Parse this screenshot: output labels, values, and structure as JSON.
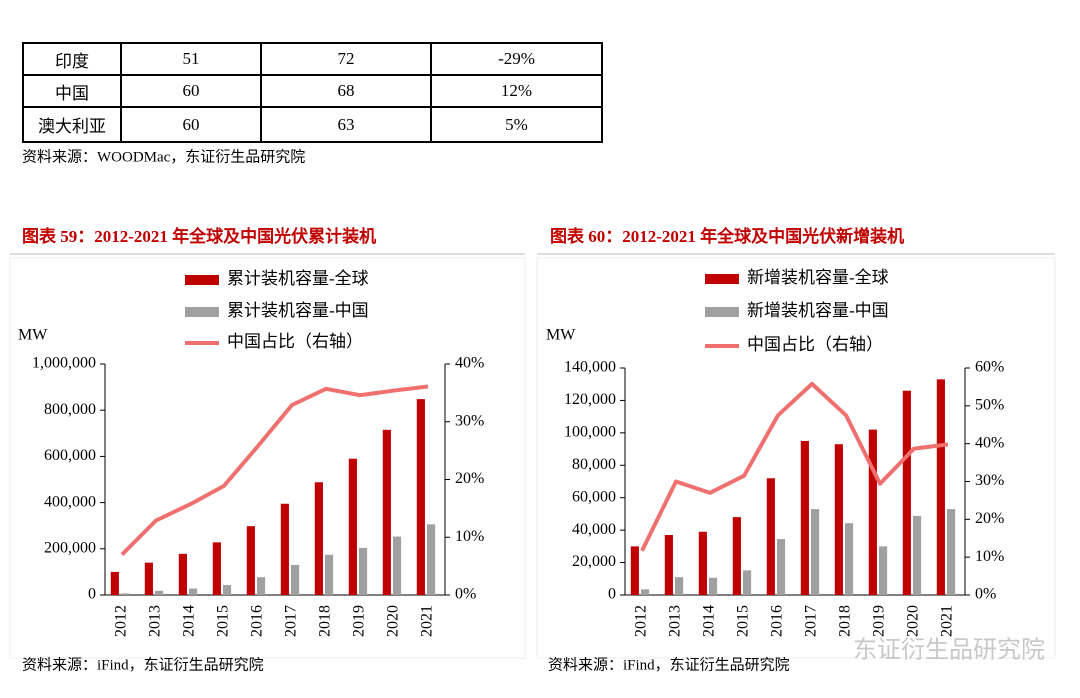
{
  "table": {
    "rows": [
      [
        "印度",
        "51",
        "72",
        "-29%"
      ],
      [
        "中国",
        "60",
        "68",
        "12%"
      ],
      [
        "澳大利亚",
        "60",
        "63",
        "5%"
      ]
    ]
  },
  "table_source": "资料来源：WOODMac，东证衍生品研究院",
  "chart_data": [
    {
      "type": "bar",
      "title": "图表 59：2012-2021 年全球及中国光伏累计装机",
      "y_label": "MW",
      "categories": [
        "2012",
        "2013",
        "2014",
        "2015",
        "2016",
        "2017",
        "2018",
        "2019",
        "2020",
        "2021"
      ],
      "series": [
        {
          "name": "累计装机容量-全球",
          "color": "#c00000",
          "values": [
            100000,
            140000,
            178000,
            228000,
            298000,
            395000,
            488000,
            590000,
            715000,
            848000
          ]
        },
        {
          "name": "累计装机容量-中国",
          "color": "#a0a0a0",
          "values": [
            7000,
            18000,
            28000,
            43000,
            77000,
            130000,
            174000,
            204000,
            253000,
            306000
          ]
        },
        {
          "name": "中国占比（右轴）",
          "type": "line",
          "axis": "y2",
          "color": "#f07070",
          "values": [
            7,
            12.9,
            15.7,
            18.9,
            25.8,
            32.9,
            35.7,
            34.6,
            35.4,
            36.1
          ]
        }
      ],
      "ylim": [
        0,
        1000000
      ],
      "yticks": [
        0,
        {
          "value": 200000,
          "label": "200,000"
        },
        {
          "value": 400000,
          "label": "400,000"
        },
        {
          "value": 600000,
          "label": "600,000"
        },
        {
          "value": 800000,
          "label": "800,000"
        },
        {
          "value": 1000000,
          "label": "1,000,000"
        }
      ],
      "y2lim": [
        0,
        40
      ],
      "y2ticks": [
        {
          "value": 0,
          "label": "0%"
        },
        {
          "value": 10,
          "label": "10%"
        },
        {
          "value": 20,
          "label": "20%"
        },
        {
          "value": 30,
          "label": "30%"
        },
        {
          "value": 40,
          "label": "40%"
        }
      ],
      "source": "资料来源：iFind，东证衍生品研究院"
    },
    {
      "type": "bar",
      "title": "图表 60：2012-2021 年全球及中国光伏新增装机",
      "y_label": "MW",
      "categories": [
        "2012",
        "2013",
        "2014",
        "2015",
        "2016",
        "2017",
        "2018",
        "2019",
        "2020",
        "2021"
      ],
      "series": [
        {
          "name": "新增装机容量-全球",
          "color": "#c00000",
          "values": [
            30000,
            37000,
            39000,
            48000,
            72000,
            95000,
            93000,
            102000,
            126000,
            133000
          ]
        },
        {
          "name": "新增装机容量-中国",
          "color": "#a0a0a0",
          "values": [
            3500,
            11000,
            10600,
            15200,
            34500,
            53000,
            44300,
            30000,
            48800,
            53000
          ]
        },
        {
          "name": "中国占比（右轴）",
          "type": "line",
          "axis": "y2",
          "color": "#f07070",
          "values": [
            11.7,
            30,
            27,
            31.5,
            47.5,
            55.8,
            47.5,
            29.4,
            38.7,
            39.8
          ]
        }
      ],
      "ylim": [
        0,
        140000
      ],
      "yticks": [
        0,
        {
          "value": 20000,
          "label": "20,000"
        },
        {
          "value": 40000,
          "label": "40,000"
        },
        {
          "value": 60000,
          "label": "60,000"
        },
        {
          "value": 80000,
          "label": "80,000"
        },
        {
          "value": 100000,
          "label": "100,000"
        },
        {
          "value": 120000,
          "label": "120,000"
        },
        {
          "value": 140000,
          "label": "140,000"
        }
      ],
      "y2lim": [
        0,
        60
      ],
      "y2ticks": [
        {
          "value": 0,
          "label": "0%"
        },
        {
          "value": 10,
          "label": "10%"
        },
        {
          "value": 20,
          "label": "20%"
        },
        {
          "value": 30,
          "label": "30%"
        },
        {
          "value": 40,
          "label": "40%"
        },
        {
          "value": 50,
          "label": "50%"
        },
        {
          "value": 60,
          "label": "60%"
        }
      ],
      "source": "资料来源：iFind，东证衍生品研究院"
    }
  ],
  "watermark": "东证衍生品研究院"
}
